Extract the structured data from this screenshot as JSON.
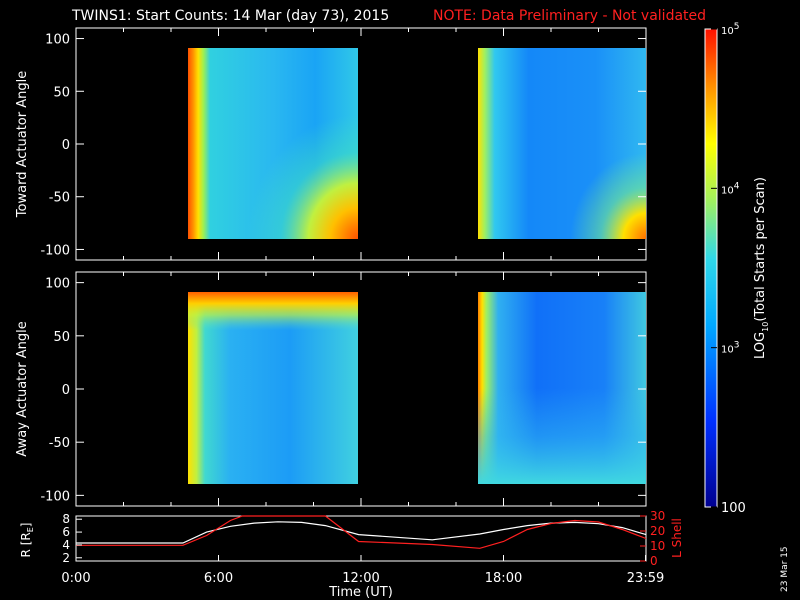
{
  "title": {
    "main": "TWINS1: Start Counts: 14 Mar (day  73), 2015",
    "note": "NOTE: Data Preliminary - Not validated"
  },
  "side_date": "23 Mar 15",
  "colors": {
    "background": "#000000",
    "axis": "#ffffff",
    "note": "#ff2020",
    "lshell": "#ff2020",
    "r_line": "#ffffff"
  },
  "chart_data": [
    {
      "type": "heatmap",
      "ylabel": "Toward Actuator Angle",
      "ylim": [
        -110,
        110
      ],
      "yticks": [
        100,
        50,
        0,
        -50,
        -100
      ],
      "xlim": [
        0,
        24
      ],
      "data_blocks": [
        {
          "x_start": 4.5,
          "x_end": 11.9,
          "y_start": -90,
          "y_end": 90
        },
        {
          "x_start": 17.0,
          "x_end": 24.0,
          "y_start": -90,
          "y_end": 90
        }
      ]
    },
    {
      "type": "heatmap",
      "ylabel": "Away Actuator Angle",
      "ylim": [
        -110,
        110
      ],
      "yticks": [
        100,
        50,
        0,
        -50,
        -100
      ],
      "xlim": [
        0,
        24
      ],
      "data_blocks": [
        {
          "x_start": 4.5,
          "x_end": 11.9,
          "y_start": -90,
          "y_end": 90
        },
        {
          "x_start": 17.0,
          "x_end": 24.0,
          "y_start": -90,
          "y_end": 90
        }
      ]
    },
    {
      "type": "line",
      "xlabel": "Time (UT)",
      "xticks": [
        {
          "value": 0,
          "label": "0:00"
        },
        {
          "value": 6,
          "label": "6:00"
        },
        {
          "value": 12,
          "label": "12:00"
        },
        {
          "value": 18,
          "label": "18:00"
        },
        {
          "value": 23.98,
          "label": "23:59"
        }
      ],
      "ylabel_left": "R [R",
      "ylabel_left_sub": "E",
      "ylabel_left_end": "]",
      "yticks_left": [
        2,
        4,
        6,
        8
      ],
      "ylim_left": [
        1.5,
        8.5
      ],
      "ylabel_right": "L Shell",
      "yticks_right": [
        0,
        10,
        20,
        30
      ],
      "ylim_right": [
        0,
        30
      ],
      "series": [
        {
          "axis": "left",
          "x": [
            0,
            4.5,
            5.5,
            6.5,
            7.5,
            8.5,
            9.5,
            10.5,
            11.9,
            15,
            17.0,
            18,
            19,
            20,
            21,
            22,
            23,
            24
          ],
          "y": [
            4.3,
            4.3,
            6.0,
            6.9,
            7.4,
            7.6,
            7.5,
            7.0,
            5.6,
            4.8,
            5.7,
            6.4,
            7.0,
            7.4,
            7.5,
            7.3,
            6.7,
            5.6
          ]
        },
        {
          "axis": "right",
          "x": [
            0,
            4.5,
            5.5,
            6.5,
            7.0,
            10.5,
            11.9,
            15,
            17.0,
            18,
            19,
            20,
            21,
            22,
            23,
            24
          ],
          "y": [
            10.5,
            10.5,
            17,
            27,
            31,
            31,
            13,
            11,
            8.5,
            13,
            21,
            25,
            27,
            26,
            21,
            15
          ]
        }
      ]
    }
  ],
  "colorbar": {
    "label_main": "LOG",
    "label_sub": "10",
    "label_end": "(Total Starts per Scan)",
    "ticks": [
      {
        "value": 100000,
        "base": "10",
        "exp": "5"
      },
      {
        "value": 10000,
        "base": "10",
        "exp": "4"
      },
      {
        "value": 1000,
        "base": "10",
        "exp": "3"
      },
      {
        "value": 100,
        "base": "100",
        "exp": ""
      }
    ],
    "range": [
      100,
      100000
    ],
    "colors": [
      "#0000a0",
      "#0030ff",
      "#00a0ff",
      "#20d0f0",
      "#a0f060",
      "#ffff00",
      "#ff9000",
      "#ff2000"
    ]
  }
}
